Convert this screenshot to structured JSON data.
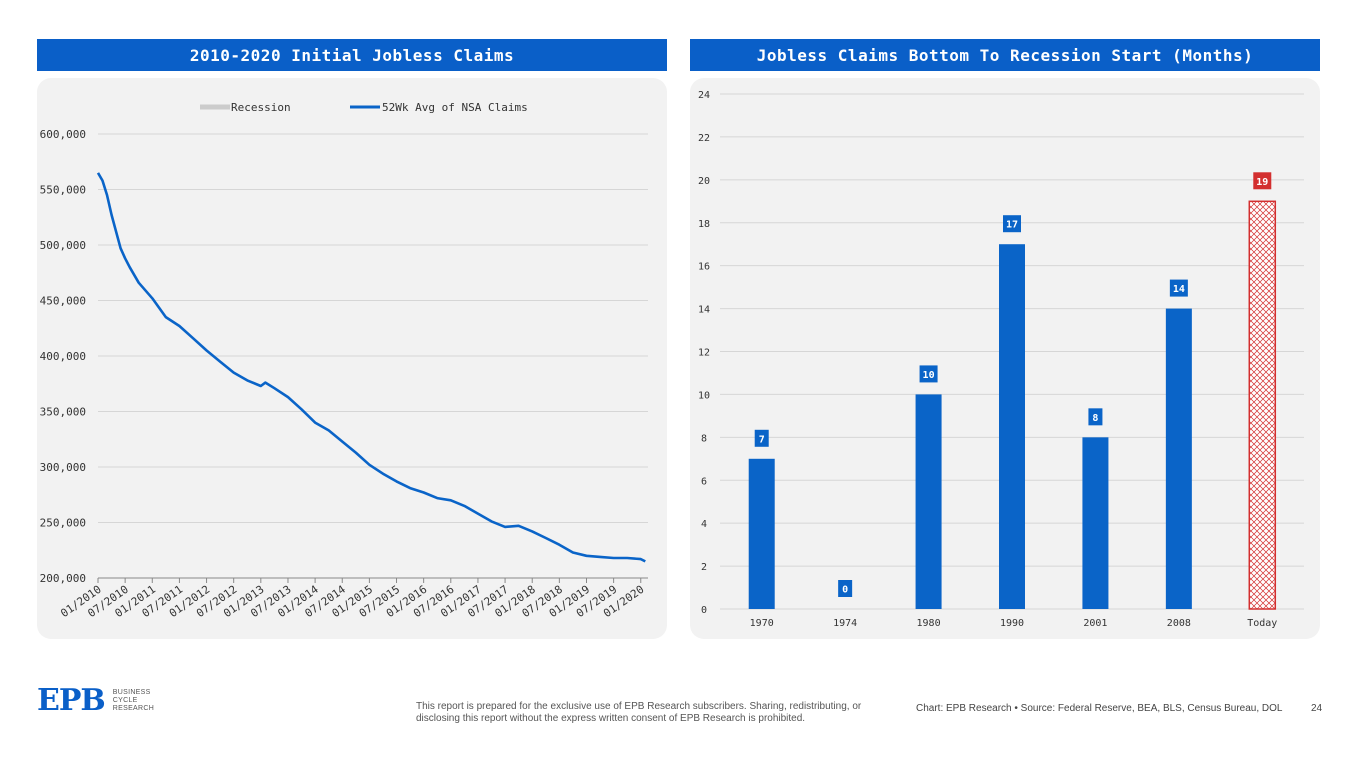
{
  "left_panel": {
    "title": "2010-2020 Initial Jobless Claims"
  },
  "right_panel": {
    "title": "Jobless Claims Bottom To Recession Start (Months)"
  },
  "chart_data": [
    {
      "type": "line",
      "title": "2010-2020 Initial Jobless Claims",
      "legend": [
        "Recession",
        "52Wk Avg of NSA Claims"
      ],
      "legend_position": "top",
      "ylim": [
        200000,
        600000
      ],
      "yticks": [
        "200,000",
        "250,000",
        "300,000",
        "350,000",
        "400,000",
        "450,000",
        "500,000",
        "550,000",
        "600,000"
      ],
      "xticks": [
        "01/2010",
        "07/2010",
        "01/2011",
        "07/2011",
        "01/2012",
        "07/2012",
        "01/2013",
        "07/2013",
        "01/2014",
        "07/2014",
        "01/2015",
        "07/2015",
        "01/2016",
        "07/2016",
        "01/2017",
        "07/2017",
        "01/2018",
        "07/2018",
        "01/2019",
        "07/2019",
        "01/2020"
      ],
      "grid": "horizontal",
      "colors": {
        "line": "#0a64c8",
        "recession": "#cccccc"
      },
      "series": [
        {
          "name": "52Wk Avg of NSA Claims",
          "x": [
            "2010-01",
            "2010-02",
            "2010-03",
            "2010-04",
            "2010-05",
            "2010-06",
            "2010-07",
            "2010-08",
            "2010-10",
            "2011-01",
            "2011-04",
            "2011-07",
            "2011-10",
            "2012-01",
            "2012-04",
            "2012-07",
            "2012-10",
            "2013-01",
            "2013-02",
            "2013-04",
            "2013-07",
            "2013-10",
            "2014-01",
            "2014-04",
            "2014-07",
            "2014-10",
            "2015-01",
            "2015-04",
            "2015-07",
            "2015-10",
            "2016-01",
            "2016-04",
            "2016-07",
            "2016-10",
            "2017-01",
            "2017-04",
            "2017-07",
            "2017-10",
            "2018-01",
            "2018-04",
            "2018-07",
            "2018-10",
            "2019-01",
            "2019-04",
            "2019-07",
            "2019-10",
            "2020-01",
            "2020-02"
          ],
          "values": [
            565000,
            558000,
            545000,
            527000,
            512000,
            497000,
            488000,
            480000,
            466000,
            452000,
            435000,
            427000,
            416000,
            405000,
            395000,
            385000,
            378000,
            373000,
            376000,
            371000,
            363000,
            352000,
            340000,
            333000,
            323000,
            313000,
            302000,
            294000,
            287000,
            281000,
            277000,
            272000,
            270000,
            265000,
            258000,
            251000,
            246000,
            247000,
            242000,
            236000,
            230000,
            223000,
            220000,
            219000,
            218000,
            218000,
            217000,
            215000
          ]
        }
      ]
    },
    {
      "type": "bar",
      "title": "Jobless Claims Bottom To Recession Start (Months)",
      "categories": [
        "1970",
        "1974",
        "1980",
        "1990",
        "2001",
        "2008",
        "Today"
      ],
      "values": [
        7,
        0,
        10,
        17,
        8,
        14,
        19
      ],
      "data_labels": [
        "7",
        "0",
        "10",
        "17",
        "8",
        "14",
        "19"
      ],
      "ylim": [
        0,
        24
      ],
      "yticks": [
        "0",
        "2",
        "4",
        "6",
        "8",
        "10",
        "12",
        "14",
        "16",
        "18",
        "20",
        "22",
        "24"
      ],
      "grid": "horizontal",
      "colors": {
        "bar": "#0a64c8",
        "highlight": "#d32f2f"
      },
      "highlight": "Today"
    }
  ],
  "footer": {
    "disclaimer": "This report is prepared for the exclusive use of EPB Research subscribers. Sharing, redistributing, or disclosing this report without the express written consent of EPB Research is prohibited.",
    "source": "Chart: EPB Research  •  Source: Federal Reserve, BEA, BLS, Census Bureau, DOL",
    "page_number": "24"
  },
  "logo": {
    "mark": "EPB",
    "line1": "BUSINESS",
    "line2": "CYCLE",
    "line3": "RESEARCH"
  }
}
